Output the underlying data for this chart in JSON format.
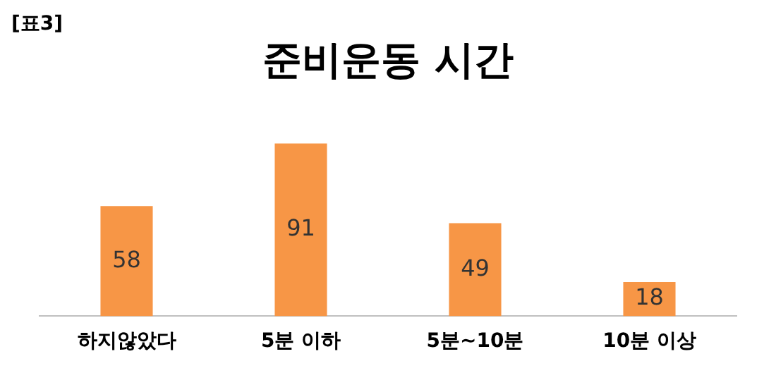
{
  "chart_data": {
    "type": "bar",
    "title": "준비운동 시간",
    "annotations": [
      "[표3]"
    ],
    "categories": [
      "하지않았다",
      "5분 이하",
      "5분~10분",
      "10분 이상"
    ],
    "values": [
      58,
      91,
      49,
      18
    ],
    "color": "#f79646",
    "data_labels": true,
    "grid": false,
    "legend": false
  }
}
